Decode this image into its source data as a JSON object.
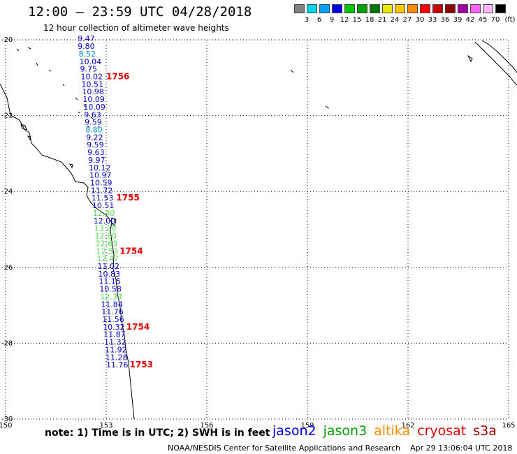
{
  "header": {
    "title": "12:00 – 23:59 UTC 04/28/2018",
    "subtitle": "12 hour collection of altimeter wave heights"
  },
  "legend": {
    "unit": "(ft)",
    "bins": [
      {
        "label": "",
        "color": "#808080"
      },
      {
        "label": "3",
        "color": "#00d8e8"
      },
      {
        "label": "6",
        "color": "#00a0ff"
      },
      {
        "label": "9",
        "color": "#0000e0"
      },
      {
        "label": "12",
        "color": "#00c800"
      },
      {
        "label": "15",
        "color": "#00a000"
      },
      {
        "label": "18",
        "color": "#007800"
      },
      {
        "label": "21",
        "color": "#e8e800"
      },
      {
        "label": "24",
        "color": "#ffc800"
      },
      {
        "label": "27",
        "color": "#ff8c00"
      },
      {
        "label": "30",
        "color": "#ff0000"
      },
      {
        "label": "33",
        "color": "#c80000"
      },
      {
        "label": "36",
        "color": "#8c0000"
      },
      {
        "label": "39",
        "color": "#a000a0"
      },
      {
        "label": "42",
        "color": "#ff64ff"
      },
      {
        "label": "45",
        "color": "#ffb4ff"
      },
      {
        "label": "70",
        "color": "#000000"
      }
    ]
  },
  "axes": {
    "lat_labels": [
      "-20",
      "-22",
      "-24",
      "-26",
      "-28",
      "-30"
    ],
    "lon_labels": [
      "150",
      "153",
      "156",
      "159",
      "162",
      "165"
    ],
    "lat_range": [
      -30,
      -20
    ],
    "lon_range": [
      150,
      165
    ],
    "grid": "dotted"
  },
  "track": {
    "colors": {
      "jason2": "#0000c8",
      "jason3": "#00b400",
      "altika": "#ff8c00",
      "cryosat": "#e00000",
      "s3a": "#a00000",
      "light_blue": "#0096c8",
      "light_green": "#50dc50"
    },
    "readings": [
      {
        "text": "9.47",
        "lat": -20.04,
        "lon": 152.15,
        "color": "#0000c8"
      },
      {
        "text": "9.80",
        "lat": -20.24,
        "lon": 152.15,
        "color": "#0000c8"
      },
      {
        "text": "8.52",
        "lat": -20.44,
        "lon": 152.18,
        "color": "#0096c8"
      },
      {
        "text": "10.04",
        "lat": -20.64,
        "lon": 152.2,
        "color": "#0000c8"
      },
      {
        "text": "9.75",
        "lat": -20.84,
        "lon": 152.22,
        "color": "#0000c8"
      },
      {
        "text": "10.02",
        "lat": -21.04,
        "lon": 152.24,
        "color": "#0000c8"
      },
      {
        "text": "10.51",
        "lat": -21.24,
        "lon": 152.26,
        "color": "#0000c8"
      },
      {
        "text": "10.98",
        "lat": -21.44,
        "lon": 152.28,
        "color": "#0000c8"
      },
      {
        "text": "10.09",
        "lat": -21.64,
        "lon": 152.3,
        "color": "#0000c8"
      },
      {
        "text": "10.09",
        "lat": -21.84,
        "lon": 152.32,
        "color": "#0000c8"
      },
      {
        "text": "9.63",
        "lat": -22.04,
        "lon": 152.34,
        "color": "#0000c8"
      },
      {
        "text": "9.59",
        "lat": -22.24,
        "lon": 152.36,
        "color": "#0000c8"
      },
      {
        "text": "8.80",
        "lat": -22.44,
        "lon": 152.38,
        "color": "#0096c8"
      },
      {
        "text": "9.22",
        "lat": -22.64,
        "lon": 152.4,
        "color": "#0000c8"
      },
      {
        "text": "9.59",
        "lat": -22.84,
        "lon": 152.42,
        "color": "#0000c8"
      },
      {
        "text": "9.63",
        "lat": -23.04,
        "lon": 152.44,
        "color": "#0000c8"
      },
      {
        "text": "9.97",
        "lat": -23.24,
        "lon": 152.46,
        "color": "#0000c8"
      },
      {
        "text": "10.12",
        "lat": -23.44,
        "lon": 152.48,
        "color": "#0000c8"
      },
      {
        "text": "10.97",
        "lat": -23.64,
        "lon": 152.5,
        "color": "#0000c8"
      },
      {
        "text": "10.59",
        "lat": -23.84,
        "lon": 152.52,
        "color": "#0000c8"
      },
      {
        "text": "11.72",
        "lat": -24.04,
        "lon": 152.54,
        "color": "#0000c8"
      },
      {
        "text": "11.53",
        "lat": -24.24,
        "lon": 152.56,
        "color": "#0000c8"
      },
      {
        "text": "10.51",
        "lat": -24.44,
        "lon": 152.58,
        "color": "#0000c8"
      },
      {
        "text": "12.40",
        "lat": -24.64,
        "lon": 152.6,
        "color": "#50dc50"
      },
      {
        "text": "12.00",
        "lat": -24.84,
        "lon": 152.62,
        "color": "#0000c8"
      },
      {
        "text": "13.20",
        "lat": -25.04,
        "lon": 152.64,
        "color": "#50dc50"
      },
      {
        "text": "12.80",
        "lat": -25.24,
        "lon": 152.66,
        "color": "#50dc50"
      },
      {
        "text": "12.63",
        "lat": -25.44,
        "lon": 152.68,
        "color": "#50dc50"
      },
      {
        "text": "12.53",
        "lat": -25.64,
        "lon": 152.7,
        "color": "#50dc50"
      },
      {
        "text": "12.47",
        "lat": -25.84,
        "lon": 152.72,
        "color": "#50dc50"
      },
      {
        "text": "11.02",
        "lat": -26.04,
        "lon": 152.74,
        "color": "#0000c8"
      },
      {
        "text": "10.83",
        "lat": -26.24,
        "lon": 152.76,
        "color": "#0000c8"
      },
      {
        "text": "11.15",
        "lat": -26.44,
        "lon": 152.78,
        "color": "#0000c8"
      },
      {
        "text": "10.58",
        "lat": -26.64,
        "lon": 152.8,
        "color": "#0000c8"
      },
      {
        "text": "12.33",
        "lat": -26.84,
        "lon": 152.82,
        "color": "#50dc50"
      },
      {
        "text": "11.84",
        "lat": -27.04,
        "lon": 152.84,
        "color": "#0000c8"
      },
      {
        "text": "11.76",
        "lat": -27.24,
        "lon": 152.86,
        "color": "#0000c8"
      },
      {
        "text": "11.56",
        "lat": -27.44,
        "lon": 152.88,
        "color": "#0000c8"
      },
      {
        "text": "10.32",
        "lat": -27.64,
        "lon": 152.9,
        "color": "#0000c8"
      },
      {
        "text": "11.87",
        "lat": -27.84,
        "lon": 152.92,
        "color": "#0000c8"
      },
      {
        "text": "11.32",
        "lat": -28.04,
        "lon": 152.94,
        "color": "#0000c8"
      },
      {
        "text": "11.92",
        "lat": -28.24,
        "lon": 152.96,
        "color": "#0000c8"
      },
      {
        "text": "11.28",
        "lat": -28.44,
        "lon": 152.98,
        "color": "#0000c8"
      },
      {
        "text": "11.76",
        "lat": -28.64,
        "lon": 153.0,
        "color": "#0000c8"
      }
    ],
    "time_marks": [
      {
        "text": "1756",
        "lat": -21.04,
        "lon": 153.0
      },
      {
        "text": "1755",
        "lat": -24.24,
        "lon": 153.3
      },
      {
        "text": "1754",
        "lat": -25.64,
        "lon": 153.4
      },
      {
        "text": "1754",
        "lat": -27.64,
        "lon": 153.6
      },
      {
        "text": "1753",
        "lat": -28.64,
        "lon": 153.7
      }
    ]
  },
  "footer": {
    "note": "note:  1) Time is in UTC;  2) SWH is in feet",
    "satellites": [
      {
        "name": "jason2",
        "color": "#0000e0"
      },
      {
        "name": "jason3",
        "color": "#00a000"
      },
      {
        "name": "altika",
        "color": "#ff8c00"
      },
      {
        "name": "cryosat",
        "color": "#e00000"
      },
      {
        "name": "s3a",
        "color": "#a00000"
      }
    ],
    "credit": "NOAA/NESDIS Center for Satellite Applications and Research",
    "timestamp": "Apr 29 13:06:04 UTC 2018"
  }
}
